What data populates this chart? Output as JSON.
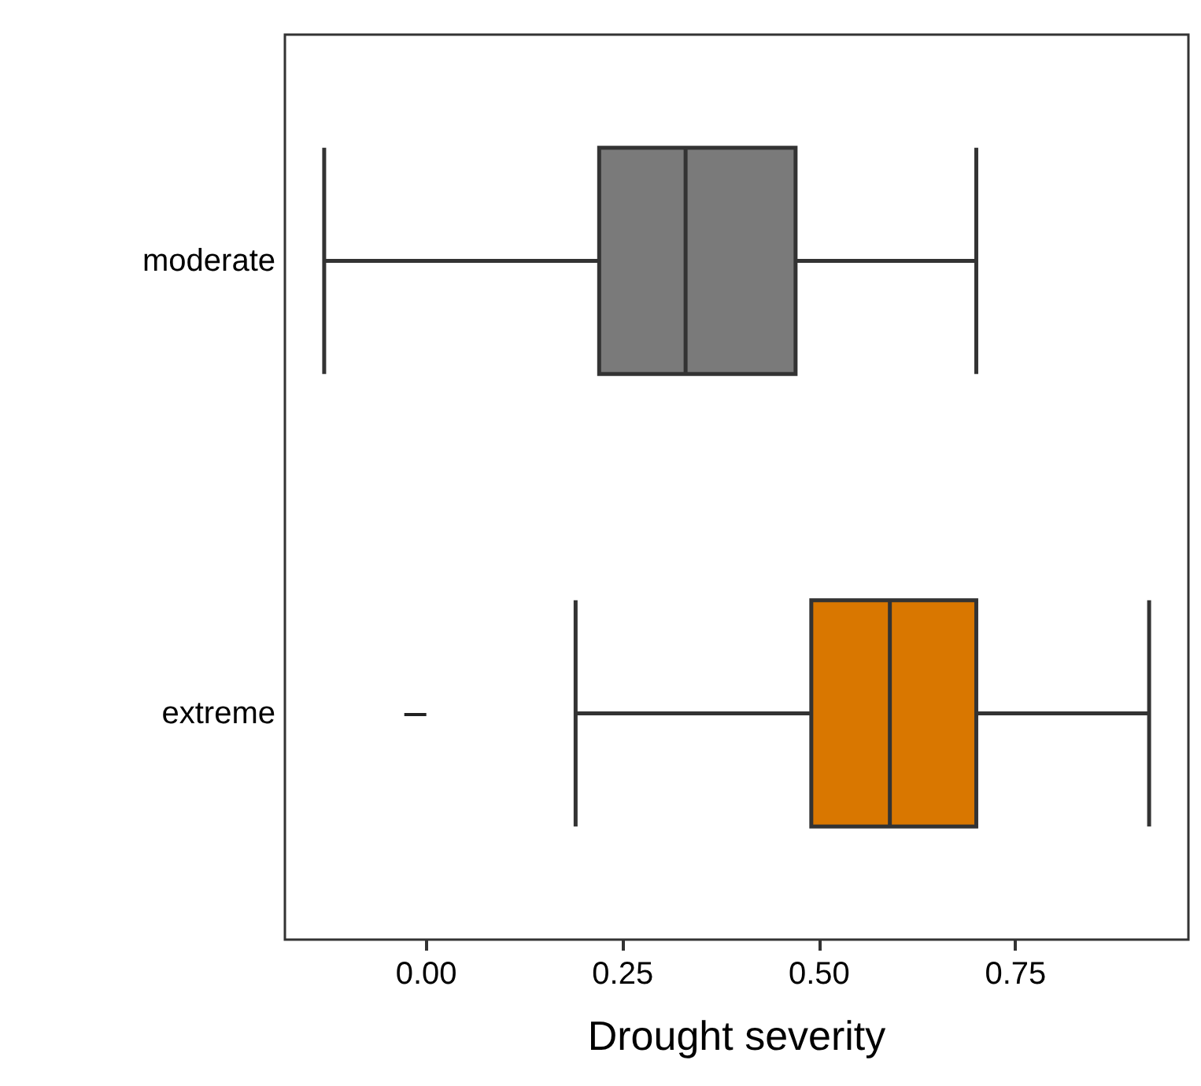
{
  "chart_data": {
    "type": "box",
    "orientation": "horizontal",
    "categories": [
      "moderate",
      "extreme"
    ],
    "boxes": [
      {
        "low": -0.13,
        "q1": 0.22,
        "median": 0.33,
        "q3": 0.47,
        "high": 0.7
      },
      {
        "low": 0.19,
        "q1": 0.49,
        "median": 0.59,
        "q3": 0.7,
        "high": 0.92
      }
    ],
    "colors": [
      "#7a7a7a",
      "#d97700"
    ],
    "xlim": [
      -0.18,
      0.97
    ],
    "xticks": [
      {
        "value": 0,
        "label": "0.00"
      },
      {
        "value": 0.25,
        "label": "0.25"
      },
      {
        "value": 0.5,
        "label": "0.50"
      },
      {
        "value": 0.75,
        "label": "0.75"
      }
    ],
    "xlabel": "Drought severity",
    "grid": false
  }
}
